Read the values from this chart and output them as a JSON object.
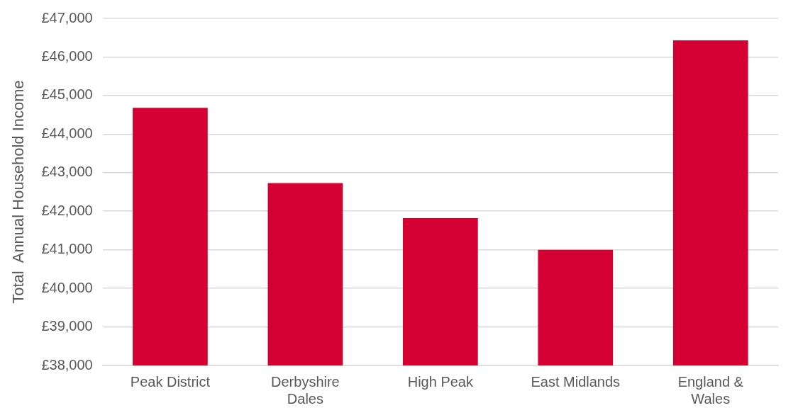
{
  "chart_data": {
    "type": "bar",
    "ylabel": "Total  Annual Household Income",
    "categories": [
      "Peak District",
      "Derbyshire Dales",
      "High Peak",
      "East Midlands",
      "England & Wales"
    ],
    "values": [
      44680,
      42730,
      41820,
      41000,
      46430
    ],
    "color": "#d50032",
    "ylim": [
      38000,
      47000
    ],
    "yticks": [
      {
        "value": 38000,
        "label": "£38,000"
      },
      {
        "value": 39000,
        "label": "£39,000"
      },
      {
        "value": 40000,
        "label": "£40,000"
      },
      {
        "value": 41000,
        "label": "£41,000"
      },
      {
        "value": 42000,
        "label": "£42,000"
      },
      {
        "value": 43000,
        "label": "£43,000"
      },
      {
        "value": 44000,
        "label": "£44,000"
      },
      {
        "value": 45000,
        "label": "£45,000"
      },
      {
        "value": 46000,
        "label": "£46,000"
      },
      {
        "value": 47000,
        "label": "£47,000"
      }
    ],
    "grid": "y",
    "legend": false
  }
}
